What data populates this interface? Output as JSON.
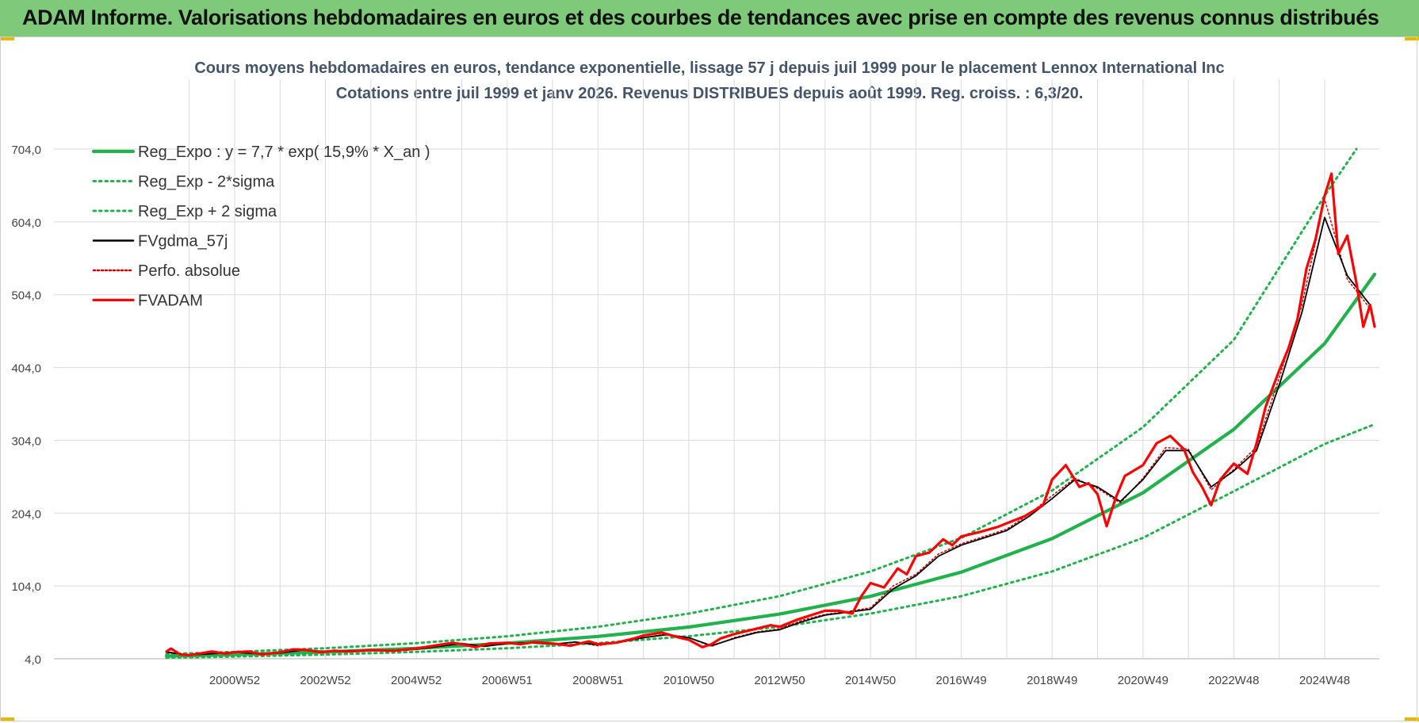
{
  "header": {
    "title": "ADAM Informe. Valorisations hebdomadaires en euros et des courbes de tendances avec prise en compte des revenus connus distribués"
  },
  "chart_data": {
    "type": "line",
    "title": "Cours moyens hebdomadaires en euros, tendance exponentielle, lissage 57 j depuis juil 1999 pour le placement Lennox International Inc",
    "subtitle": "Cotations entre juil 1999 et janv 2026. Revenus DISTRIBUES depuis août 1999. Reg. croiss. : 6,3/20.",
    "xlabel": "",
    "ylabel": "",
    "ylim": [
      4,
      704
    ],
    "y_ticks": [
      "4,0",
      "104,0",
      "204,0",
      "304,0",
      "404,0",
      "504,0",
      "604,0",
      "704,0"
    ],
    "x_ticks": [
      {
        "label": "2000W52",
        "t": 2001.0
      },
      {
        "label": "2002W52",
        "t": 2003.0
      },
      {
        "label": "2004W52",
        "t": 2005.0
      },
      {
        "label": "2006W51",
        "t": 2007.0
      },
      {
        "label": "2008W51",
        "t": 2009.0
      },
      {
        "label": "2010W50",
        "t": 2011.0
      },
      {
        "label": "2012W50",
        "t": 2013.0
      },
      {
        "label": "2014W50",
        "t": 2015.0
      },
      {
        "label": "2016W49",
        "t": 2017.0
      },
      {
        "label": "2018W49",
        "t": 2019.0
      },
      {
        "label": "2020W49",
        "t": 2021.0
      },
      {
        "label": "2022W48",
        "t": 2023.0
      },
      {
        "label": "2024W48",
        "t": 2025.0
      }
    ],
    "grid": true,
    "legend_position": "top-left",
    "x_unit": "year",
    "series": [
      {
        "name": "Reg_Expo : y = 7,7 * exp( 15,9% *  X_an )",
        "color": "#22b14c",
        "style": "solid-thick",
        "x": [
          1999.5,
          2001,
          2003,
          2005,
          2007,
          2009,
          2011,
          2013,
          2015,
          2017,
          2019,
          2021,
          2023,
          2025,
          2026.1
        ],
        "y": [
          7.7,
          9.8,
          13.4,
          18.4,
          25.3,
          34.7,
          47.6,
          65.4,
          89.8,
          123,
          169,
          232,
          319,
          437,
          532
        ]
      },
      {
        "name": "Reg_Exp - 2*sigma",
        "color": "#22b14c",
        "style": "dotted",
        "x": [
          1999.5,
          2001,
          2003,
          2005,
          2007,
          2009,
          2011,
          2013,
          2015,
          2017,
          2019,
          2021,
          2023,
          2025,
          2026.1
        ],
        "y": [
          5.5,
          7.1,
          9.8,
          13.5,
          18.5,
          25.5,
          35,
          48,
          66,
          90,
          124,
          170,
          234,
          299,
          326
        ]
      },
      {
        "name": "Reg_Exp + 2 sigma",
        "color": "#22b14c",
        "style": "dotted",
        "x": [
          1999.5,
          2001,
          2003,
          2005,
          2007,
          2009,
          2011,
          2013,
          2015,
          2017,
          2019,
          2021,
          2023,
          2025,
          2025.7
        ],
        "y": [
          10.5,
          13.5,
          18.5,
          25.4,
          34.9,
          48,
          66,
          90,
          124,
          170,
          235,
          322,
          442,
          640,
          704
        ]
      },
      {
        "name": "FVgdma_57j",
        "color": "#000000",
        "style": "solid",
        "x": [
          1999.5,
          2000,
          2000.5,
          2001,
          2001.5,
          2002,
          2002.5,
          2003,
          2003.5,
          2004,
          2004.5,
          2005,
          2005.5,
          2006,
          2006.5,
          2007,
          2007.5,
          2008,
          2008.5,
          2009,
          2009.5,
          2010,
          2010.5,
          2011,
          2011.5,
          2012,
          2012.5,
          2013,
          2013.5,
          2014,
          2014.5,
          2015,
          2015.5,
          2016,
          2016.5,
          2017,
          2017.5,
          2018,
          2018.5,
          2019,
          2019.5,
          2020,
          2020.5,
          2021,
          2021.5,
          2022,
          2022.5,
          2023,
          2023.5,
          2024,
          2024.5,
          2025,
          2025.5,
          2026
        ],
        "y": [
          13,
          9,
          11,
          13,
          11,
          12,
          16,
          14,
          15,
          16,
          15,
          17,
          21,
          25,
          21,
          25,
          26,
          24,
          27,
          23,
          27,
          33,
          37,
          33,
          22,
          32,
          40,
          44,
          55,
          64,
          68,
          72,
          100,
          118,
          145,
          160,
          170,
          180,
          200,
          224,
          250,
          240,
          220,
          250,
          290,
          290,
          240,
          262,
          290,
          380,
          480,
          610,
          530,
          490
        ]
      },
      {
        "name": "Perfo. absolue",
        "color": "#cc0000",
        "style": "dotted",
        "x": [
          1999.5,
          2000,
          2000.5,
          2001,
          2001.5,
          2002,
          2002.5,
          2003,
          2003.5,
          2004,
          2004.5,
          2005,
          2005.5,
          2006,
          2006.5,
          2007,
          2007.5,
          2008,
          2008.5,
          2009,
          2009.5,
          2010,
          2010.5,
          2011,
          2011.5,
          2012,
          2012.5,
          2013,
          2013.5,
          2014,
          2014.5,
          2015,
          2015.5,
          2016,
          2016.5,
          2017,
          2017.5,
          2018,
          2018.5,
          2019,
          2019.5,
          2020,
          2020.5,
          2021,
          2021.5,
          2022,
          2022.5,
          2023,
          2023.5,
          2024,
          2024.5,
          2025,
          2025.5,
          2026
        ],
        "y": [
          14,
          9,
          12,
          13,
          11,
          13,
          16,
          14,
          15,
          16,
          15,
          17,
          22,
          25,
          21,
          26,
          26,
          24,
          27,
          22,
          27,
          33,
          38,
          33,
          21,
          33,
          41,
          45,
          57,
          65,
          69,
          74,
          104,
          120,
          148,
          162,
          172,
          182,
          203,
          228,
          252,
          238,
          218,
          252,
          294,
          292,
          236,
          264,
          295,
          390,
          490,
          635,
          525,
          485
        ]
      },
      {
        "name": "FVADAM",
        "color": "#ff0000",
        "style": "solid-thick",
        "x": [
          1999.5,
          1999.6,
          1999.8,
          2000,
          2000.3,
          2000.5,
          2000.8,
          2001,
          2001.3,
          2001.6,
          2002,
          2002.3,
          2002.6,
          2002.9,
          2003.2,
          2003.5,
          2004,
          2004.5,
          2005,
          2005.5,
          2005.8,
          2006,
          2006.3,
          2006.6,
          2007,
          2007.3,
          2007.6,
          2008,
          2008.4,
          2008.8,
          2009,
          2009.4,
          2009.8,
          2010,
          2010.4,
          2010.8,
          2011,
          2011.3,
          2011.5,
          2011.7,
          2012,
          2012.4,
          2012.8,
          2013,
          2013.4,
          2013.8,
          2014,
          2014.3,
          2014.6,
          2014.8,
          2015,
          2015.3,
          2015.6,
          2015.8,
          2016,
          2016.3,
          2016.6,
          2016.8,
          2017,
          2017.4,
          2017.8,
          2018,
          2018.4,
          2018.8,
          2019,
          2019.3,
          2019.6,
          2019.8,
          2020,
          2020.2,
          2020.4,
          2020.6,
          2021,
          2021.3,
          2021.6,
          2021.9,
          2022.1,
          2022.3,
          2022.5,
          2022.7,
          2023,
          2023.3,
          2023.5,
          2023.7,
          2024,
          2024.2,
          2024.4,
          2024.6,
          2024.8,
          2025,
          2025.15,
          2025.3,
          2025.5,
          2025.7,
          2025.85,
          2026,
          2026.1
        ],
        "y": [
          14,
          18,
          10,
          9,
          12,
          14,
          11,
          13,
          14,
          10,
          13,
          17,
          16,
          13,
          15,
          14,
          16,
          15,
          18,
          23,
          26,
          24,
          20,
          25,
          26,
          24,
          27,
          25,
          22,
          28,
          24,
          26,
          32,
          36,
          40,
          33,
          30,
          20,
          24,
          32,
          38,
          44,
          50,
          48,
          58,
          66,
          70,
          70,
          66,
          90,
          108,
          102,
          128,
          120,
          145,
          150,
          168,
          160,
          172,
          178,
          185,
          190,
          200,
          215,
          250,
          270,
          240,
          245,
          230,
          186,
          225,
          255,
          270,
          300,
          310,
          292,
          260,
          240,
          215,
          250,
          272,
          258,
          300,
          350,
          400,
          430,
          470,
          540,
          580,
          640,
          670,
          560,
          585,
          520,
          460,
          490,
          460
        ]
      }
    ]
  }
}
